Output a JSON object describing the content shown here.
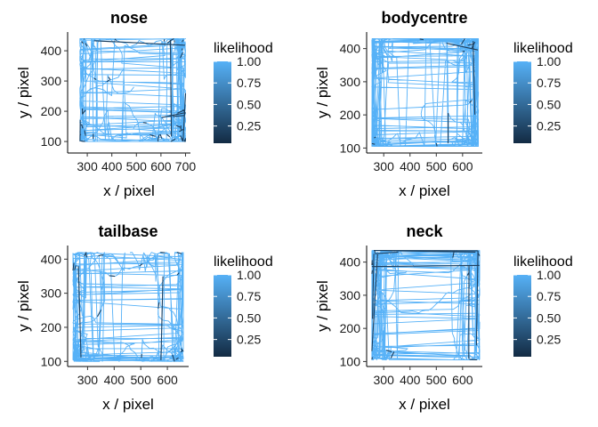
{
  "chart_data": [
    {
      "type": "line",
      "title": "nose",
      "xlabel": "x / pixel",
      "ylabel": "y / pixel",
      "xticks": [
        300,
        400,
        500,
        600,
        700
      ],
      "xtick_labels": [
        "300",
        "400",
        "500",
        "600",
        "700"
      ],
      "yticks": [
        100,
        200,
        300,
        400
      ],
      "yticks_labels": [
        "100",
        "200",
        "300",
        "400"
      ],
      "xlim": [
        220,
        720
      ],
      "ylim": [
        62,
        462
      ],
      "extent": {
        "x": [
          270,
          700
        ],
        "y": [
          100,
          440
        ]
      },
      "legend": {
        "title": "likelihood",
        "labels": [
          "1.00",
          "0.75",
          "0.50",
          "0.25"
        ],
        "values": [
          1.0,
          0.75,
          0.5,
          0.25
        ],
        "range": [
          0.05,
          1.0
        ],
        "position": "right"
      },
      "colors": {
        "high": "#56B1F7",
        "low": "#132B43"
      },
      "seed": 11,
      "points": 700,
      "dark_fraction": 0.07
    },
    {
      "type": "line",
      "title": "bodycentre",
      "xlabel": "x / pixel",
      "ylabel": "y / pixel",
      "xticks": [
        300,
        400,
        500,
        600
      ],
      "xtick_labels": [
        "300",
        "400",
        "500",
        "600"
      ],
      "yticks": [
        100,
        200,
        300,
        400
      ],
      "yticks_labels": [
        "100",
        "200",
        "300",
        "400"
      ],
      "xlim": [
        235,
        675
      ],
      "ylim": [
        85,
        450
      ],
      "extent": {
        "x": [
          255,
          660
        ],
        "y": [
          105,
          430
        ]
      },
      "legend": {
        "title": "likelihood",
        "labels": [
          "1.00",
          "0.75",
          "0.50",
          "0.25"
        ],
        "values": [
          1.0,
          0.75,
          0.5,
          0.25
        ],
        "range": [
          0.05,
          1.0
        ],
        "position": "right"
      },
      "colors": {
        "high": "#56B1F7",
        "low": "#132B43"
      },
      "seed": 23,
      "points": 700,
      "dark_fraction": 0.02
    },
    {
      "type": "line",
      "title": "tailbase",
      "xlabel": "x / pixel",
      "ylabel": "y / pixel",
      "xticks": [
        300,
        400,
        500,
        600
      ],
      "xtick_labels": [
        "300",
        "400",
        "500",
        "600"
      ],
      "yticks": [
        100,
        200,
        300,
        400
      ],
      "yticks_labels": [
        "100",
        "200",
        "300",
        "400"
      ],
      "xlim": [
        225,
        680
      ],
      "ylim": [
        85,
        440
      ],
      "extent": {
        "x": [
          245,
          660
        ],
        "y": [
          100,
          420
        ]
      },
      "legend": {
        "title": "likelihood",
        "labels": [
          "1.00",
          "0.75",
          "0.50",
          "0.25"
        ],
        "values": [
          1.0,
          0.75,
          0.5,
          0.25
        ],
        "range": [
          0.05,
          1.0
        ],
        "position": "right"
      },
      "colors": {
        "high": "#56B1F7",
        "low": "#132B43"
      },
      "seed": 37,
      "points": 700,
      "dark_fraction": 0.02
    },
    {
      "type": "line",
      "title": "neck",
      "xlabel": "x / pixel",
      "ylabel": "y / pixel",
      "xticks": [
        300,
        400,
        500,
        600
      ],
      "xtick_labels": [
        "300",
        "400",
        "500",
        "600"
      ],
      "yticks": [
        100,
        200,
        300,
        400
      ],
      "yticks_labels": [
        "100",
        "200",
        "300",
        "400"
      ],
      "xlim": [
        235,
        675
      ],
      "ylim": [
        85,
        450
      ],
      "extent": {
        "x": [
          255,
          665
        ],
        "y": [
          105,
          435
        ]
      },
      "legend": {
        "title": "likelihood",
        "labels": [
          "1.00",
          "0.75",
          "0.50",
          "0.25"
        ],
        "values": [
          1.0,
          0.75,
          0.5,
          0.25
        ],
        "range": [
          0.05,
          1.0
        ],
        "position": "right"
      },
      "colors": {
        "high": "#56B1F7",
        "low": "#132B43"
      },
      "seed": 53,
      "points": 700,
      "dark_fraction": 0.02
    }
  ]
}
